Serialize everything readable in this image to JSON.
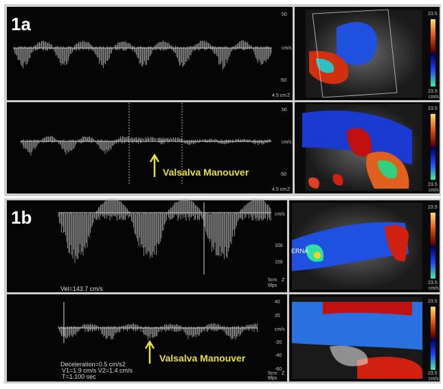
{
  "figure_a": {
    "label": "1a",
    "top": {
      "scale": [
        "50",
        "cm/s",
        "-50"
      ],
      "depth": "4.5 cm",
      "zoom": "Z",
      "color_scale": [
        "23.5",
        "23.5",
        "cm/s"
      ]
    },
    "bottom": {
      "scale": [
        "50",
        "cm/s",
        "-50"
      ],
      "depth": "4.5 cm",
      "zoom": "Z",
      "annotation": "Valsalva Manouver",
      "color_scale": [
        "23.5",
        "23.5",
        "cm/s"
      ]
    }
  },
  "figure_b": {
    "label": "1b",
    "top": {
      "scale": [
        "cm/s",
        "100",
        "150"
      ],
      "depth": "5cm",
      "frame_rate": "6fps",
      "zoom": "Z",
      "measurement": "Vel=143.7 cm/s",
      "overlay": "ERNA",
      "color_scale": [
        "23.5",
        "23.5",
        "cm/s"
      ]
    },
    "bottom": {
      "scale": [
        "40",
        "20",
        "cm/s",
        "-20",
        "-40",
        "-60"
      ],
      "depth": "5cm",
      "frame_rate": "6fps",
      "zoom": "Z",
      "annotation": "Valsalva Manouver",
      "measurements": [
        "Deceleration=0.5 cm/s2",
        "V1=1.9 cm/s  V2=1.4 cm/s",
        "T=1.100 sec"
      ],
      "color_scale": [
        "23.5",
        "23.5",
        "cm/s"
      ]
    }
  }
}
